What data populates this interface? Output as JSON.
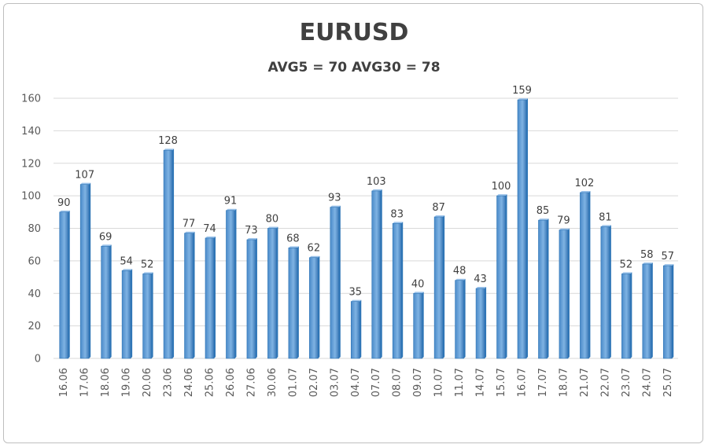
{
  "chart_data": {
    "type": "bar",
    "title": "EURUSD",
    "subtitle": "AVG5 = 70 AVG30 = 78",
    "categories": [
      "16.06",
      "17.06",
      "18.06",
      "19.06",
      "20.06",
      "23.06",
      "24.06",
      "25.06",
      "26.06",
      "27.06",
      "30.06",
      "01.07",
      "02.07",
      "03.07",
      "04.07",
      "07.07",
      "08.07",
      "09.07",
      "10.07",
      "11.07",
      "14.07",
      "15.07",
      "16.07",
      "17.07",
      "18.07",
      "21.07",
      "22.07",
      "23.07",
      "24.07",
      "25.07"
    ],
    "values": [
      90,
      107,
      69,
      54,
      52,
      128,
      77,
      74,
      91,
      73,
      80,
      68,
      62,
      93,
      35,
      103,
      83,
      40,
      87,
      48,
      43,
      100,
      159,
      85,
      79,
      102,
      81,
      52,
      58,
      57
    ],
    "ylim": [
      0,
      160
    ],
    "yticks": [
      "0",
      "20",
      "40",
      "60",
      "80",
      "100",
      "120",
      "140",
      "160"
    ],
    "grid": true,
    "legend": "none",
    "colors": {
      "bar": "#5b9bd5",
      "bar_dark": "#2e75b6",
      "grid": "#d9d9d9"
    }
  }
}
